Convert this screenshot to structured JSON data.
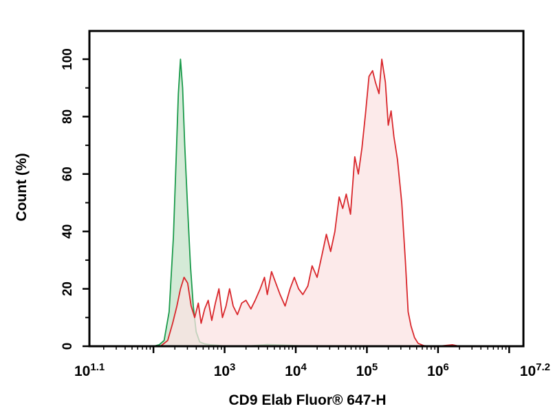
{
  "chart_data": {
    "type": "area",
    "xscale": "log10",
    "xlim": [
      1.1,
      7.2
    ],
    "ylim": [
      0,
      110
    ],
    "xlabel": "CD9 Elab Fluor® 647-H",
    "ylabel": "Count (%)",
    "x_tick_labels": [
      {
        "base": "10",
        "exp": "1.1",
        "pos": 1.1
      },
      {
        "base": "10",
        "exp": "3",
        "pos": 3
      },
      {
        "base": "10",
        "exp": "4",
        "pos": 4
      },
      {
        "base": "10",
        "exp": "5",
        "pos": 5
      },
      {
        "base": "10",
        "exp": "6",
        "pos": 6
      },
      {
        "base": "10",
        "exp": "7.2",
        "pos": 7.2
      }
    ],
    "y_ticks": [
      0,
      20,
      40,
      60,
      80,
      100
    ],
    "y_tick_labels": [
      "0",
      "20",
      "40",
      "60",
      "80",
      "100"
    ],
    "series": [
      {
        "color": "#1a9a4a",
        "fill": "#cfe8d3",
        "points": [
          [
            2.0,
            0
          ],
          [
            2.08,
            0.5
          ],
          [
            2.15,
            2
          ],
          [
            2.22,
            12
          ],
          [
            2.28,
            38
          ],
          [
            2.32,
            66
          ],
          [
            2.35,
            88
          ],
          [
            2.38,
            100
          ],
          [
            2.41,
            90
          ],
          [
            2.44,
            70
          ],
          [
            2.48,
            48
          ],
          [
            2.52,
            28
          ],
          [
            2.56,
            14
          ],
          [
            2.6,
            5
          ],
          [
            2.65,
            1.5
          ],
          [
            2.72,
            0.8
          ],
          [
            2.8,
            0.5
          ],
          [
            2.9,
            0.3
          ],
          [
            3.0,
            0
          ],
          [
            3.3,
            0
          ],
          [
            3.6,
            0.6
          ],
          [
            3.9,
            0.3
          ],
          [
            4.2,
            0
          ]
        ]
      },
      {
        "color": "#d9262b",
        "fill": "#fbe3e3",
        "points": [
          [
            2.1,
            0
          ],
          [
            2.2,
            2
          ],
          [
            2.27,
            8
          ],
          [
            2.33,
            14
          ],
          [
            2.38,
            20
          ],
          [
            2.43,
            24
          ],
          [
            2.48,
            22
          ],
          [
            2.53,
            14
          ],
          [
            2.58,
            10
          ],
          [
            2.63,
            15
          ],
          [
            2.67,
            8
          ],
          [
            2.72,
            13
          ],
          [
            2.77,
            16
          ],
          [
            2.82,
            9
          ],
          [
            2.87,
            15
          ],
          [
            2.92,
            20
          ],
          [
            2.97,
            10
          ],
          [
            3.02,
            14
          ],
          [
            3.07,
            20
          ],
          [
            3.12,
            14
          ],
          [
            3.18,
            11
          ],
          [
            3.24,
            15
          ],
          [
            3.3,
            16
          ],
          [
            3.37,
            13
          ],
          [
            3.43,
            16
          ],
          [
            3.5,
            20
          ],
          [
            3.56,
            24
          ],
          [
            3.6,
            18
          ],
          [
            3.66,
            26
          ],
          [
            3.72,
            22
          ],
          [
            3.78,
            18
          ],
          [
            3.85,
            14
          ],
          [
            3.92,
            20
          ],
          [
            3.98,
            24
          ],
          [
            4.04,
            20
          ],
          [
            4.1,
            18
          ],
          [
            4.17,
            21
          ],
          [
            4.23,
            28
          ],
          [
            4.3,
            24
          ],
          [
            4.37,
            32
          ],
          [
            4.43,
            39
          ],
          [
            4.49,
            33
          ],
          [
            4.55,
            40
          ],
          [
            4.61,
            52
          ],
          [
            4.66,
            48
          ],
          [
            4.71,
            53
          ],
          [
            4.77,
            46
          ],
          [
            4.83,
            66
          ],
          [
            4.88,
            60
          ],
          [
            4.93,
            69
          ],
          [
            4.98,
            81
          ],
          [
            5.03,
            94
          ],
          [
            5.08,
            96
          ],
          [
            5.12,
            92
          ],
          [
            5.17,
            88
          ],
          [
            5.21,
            100
          ],
          [
            5.26,
            92
          ],
          [
            5.3,
            77
          ],
          [
            5.34,
            82
          ],
          [
            5.38,
            73
          ],
          [
            5.43,
            65
          ],
          [
            5.49,
            50
          ],
          [
            5.54,
            30
          ],
          [
            5.58,
            12
          ],
          [
            5.62,
            7
          ],
          [
            5.67,
            3
          ],
          [
            5.72,
            1
          ],
          [
            5.8,
            0.2
          ],
          [
            5.9,
            0
          ],
          [
            6.0,
            0
          ],
          [
            6.2,
            0.5
          ],
          [
            6.3,
            0
          ]
        ]
      }
    ]
  }
}
